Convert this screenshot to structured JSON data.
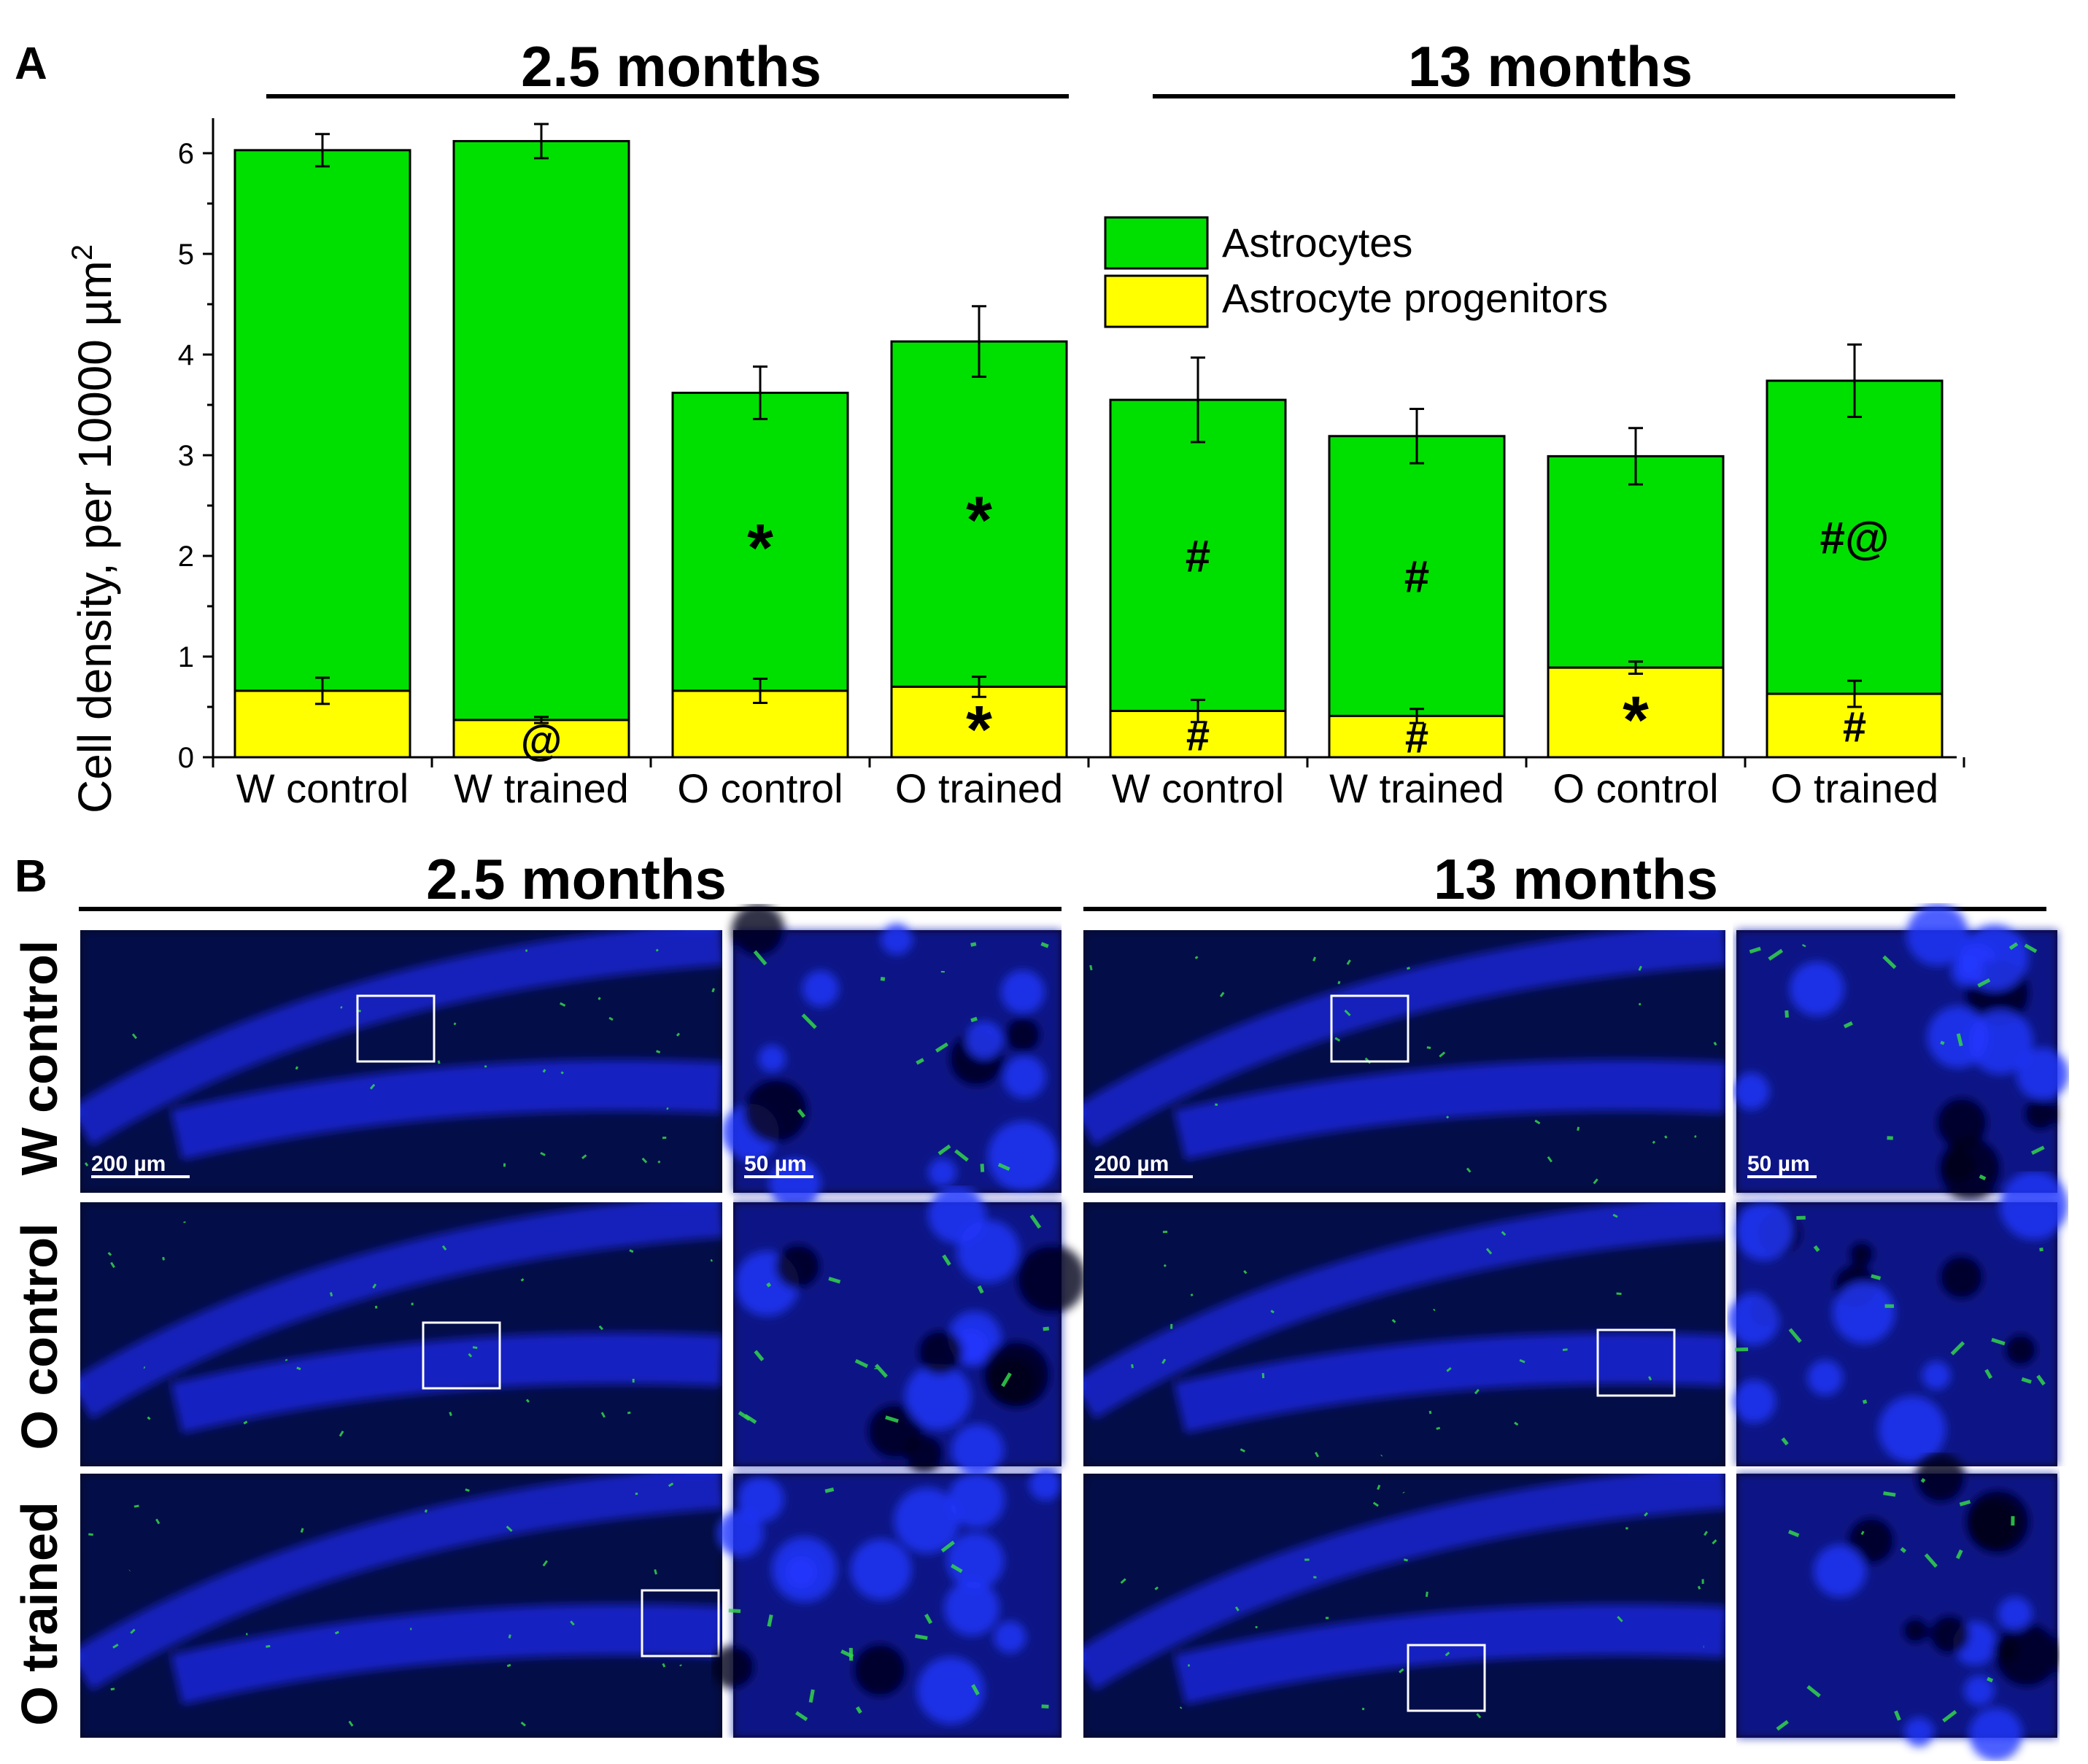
{
  "panel_a_letter": "A",
  "panel_b_letter": "B",
  "group_titles": [
    "2.5 months",
    "13 months"
  ],
  "colors": {
    "astrocytes": "#00e000",
    "progenitors": "#ffff00",
    "micro_blue": "#1a2ee8",
    "micro_green": "#32d64a"
  },
  "chart_data": {
    "type": "bar",
    "stacked": true,
    "ylabel": "Cell density, per 10000 µm",
    "ylabel_superscript": "2",
    "ylim": [
      0,
      6.5
    ],
    "yticks": [
      "0",
      "1",
      "2",
      "3",
      "4",
      "5",
      "6"
    ],
    "categories": [
      "W control",
      "W trained",
      "O control",
      "O trained",
      "W control",
      "W trained",
      "O control",
      "O trained"
    ],
    "legend_position": "top-right",
    "series": [
      {
        "name": "Astrocyte progenitors",
        "values": [
          0.66,
          0.37,
          0.66,
          0.7,
          0.46,
          0.41,
          0.89,
          0.63
        ],
        "errors": [
          0.13,
          0.03,
          0.12,
          0.1,
          0.11,
          0.07,
          0.06,
          0.13
        ],
        "annotations": [
          "",
          "@",
          "",
          "*",
          "#",
          "#",
          "*",
          "#"
        ]
      },
      {
        "name": "Astrocytes",
        "values": [
          6.03,
          6.12,
          3.62,
          4.13,
          3.55,
          3.19,
          2.99,
          3.74
        ],
        "errors": [
          0.16,
          0.17,
          0.26,
          0.35,
          0.42,
          0.27,
          0.28,
          0.36
        ],
        "annotations": [
          "",
          "",
          "*",
          "*",
          "#",
          "#",
          "",
          "#@"
        ]
      }
    ]
  },
  "panel_b": {
    "row_labels": [
      "W control",
      "O control",
      "O trained"
    ],
    "scale_bars": {
      "overview": "200 µm",
      "zoom": "50 µm"
    }
  }
}
